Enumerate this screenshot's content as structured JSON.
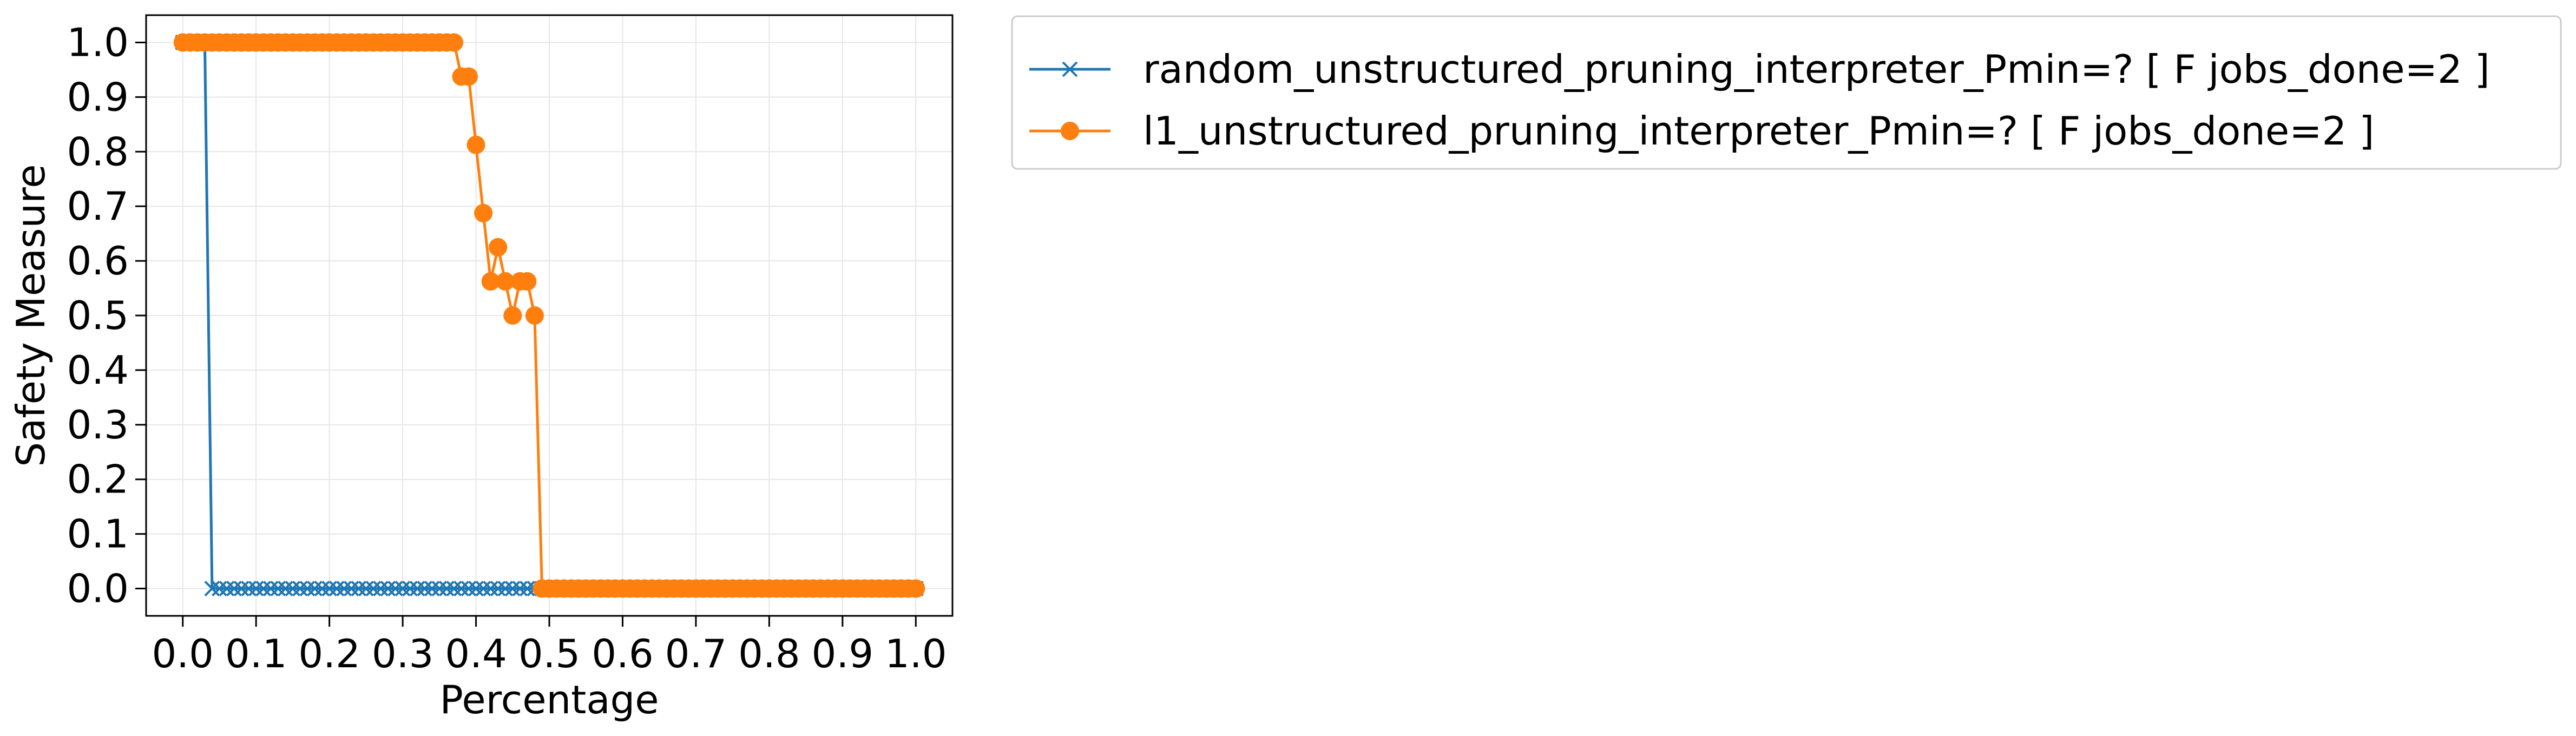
{
  "chart_data": {
    "type": "line",
    "title": "",
    "xlabel": "Percentage",
    "ylabel": "Safety Measure",
    "xlim": [
      -0.05,
      1.05
    ],
    "ylim": [
      -0.05,
      1.05
    ],
    "xticks": [
      0.0,
      0.1,
      0.2,
      0.3,
      0.4,
      0.5,
      0.6,
      0.7,
      0.8,
      0.9,
      1.0
    ],
    "xtick_labels": [
      "0.0",
      "0.1",
      "0.2",
      "0.3",
      "0.4",
      "0.5",
      "0.6",
      "0.7",
      "0.8",
      "0.9",
      "1.0"
    ],
    "yticks": [
      0.0,
      0.1,
      0.2,
      0.3,
      0.4,
      0.5,
      0.6,
      0.7,
      0.8,
      0.9,
      1.0
    ],
    "ytick_labels": [
      "0.0",
      "0.1",
      "0.2",
      "0.3",
      "0.4",
      "0.5",
      "0.6",
      "0.7",
      "0.8",
      "0.9",
      "1.0"
    ],
    "grid": true,
    "legend_position": "outside-top-right",
    "series": [
      {
        "name": "random_unstructured_pruning_interpreter_Pmin=? [ F jobs_done=2 ]",
        "color": "#1f77b4",
        "marker": "x",
        "x": [
          0.0,
          0.01,
          0.02,
          0.03,
          0.04,
          0.05,
          0.06,
          0.07,
          0.08,
          0.09,
          0.1,
          0.11,
          0.12,
          0.13,
          0.14,
          0.15,
          0.16,
          0.17,
          0.18,
          0.19,
          0.2,
          0.21,
          0.22,
          0.23,
          0.24,
          0.25,
          0.26,
          0.27,
          0.28,
          0.29,
          0.3,
          0.31,
          0.32,
          0.33,
          0.34,
          0.35,
          0.36,
          0.37,
          0.38,
          0.39,
          0.4,
          0.41,
          0.42,
          0.43,
          0.44,
          0.45,
          0.46,
          0.47,
          0.48,
          0.49,
          0.5,
          0.51,
          0.52,
          0.53,
          0.54,
          0.55,
          0.56,
          0.57,
          0.58,
          0.59,
          0.6,
          0.61,
          0.62,
          0.63,
          0.64,
          0.65,
          0.66,
          0.67,
          0.68,
          0.69,
          0.7,
          0.71,
          0.72,
          0.73,
          0.74,
          0.75,
          0.76,
          0.77,
          0.78,
          0.79,
          0.8,
          0.81,
          0.82,
          0.83,
          0.84,
          0.85,
          0.86,
          0.87,
          0.88,
          0.89,
          0.9,
          0.91,
          0.92,
          0.93,
          0.94,
          0.95,
          0.96,
          0.97,
          0.98,
          0.99,
          1.0
        ],
        "values": [
          1.0,
          1.0,
          1.0,
          1.0,
          0.0,
          0.0,
          0.0,
          0.0,
          0.0,
          0.0,
          0.0,
          0.0,
          0.0,
          0.0,
          0.0,
          0.0,
          0.0,
          0.0,
          0.0,
          0.0,
          0.0,
          0.0,
          0.0,
          0.0,
          0.0,
          0.0,
          0.0,
          0.0,
          0.0,
          0.0,
          0.0,
          0.0,
          0.0,
          0.0,
          0.0,
          0.0,
          0.0,
          0.0,
          0.0,
          0.0,
          0.0,
          0.0,
          0.0,
          0.0,
          0.0,
          0.0,
          0.0,
          0.0,
          0.0,
          0.0,
          0.0,
          0.0,
          0.0,
          0.0,
          0.0,
          0.0,
          0.0,
          0.0,
          0.0,
          0.0,
          0.0,
          0.0,
          0.0,
          0.0,
          0.0,
          0.0,
          0.0,
          0.0,
          0.0,
          0.0,
          0.0,
          0.0,
          0.0,
          0.0,
          0.0,
          0.0,
          0.0,
          0.0,
          0.0,
          0.0,
          0.0,
          0.0,
          0.0,
          0.0,
          0.0,
          0.0,
          0.0,
          0.0,
          0.0,
          0.0,
          0.0,
          0.0,
          0.0,
          0.0,
          0.0,
          0.0,
          0.0,
          0.0,
          0.0,
          0.0,
          0.0
        ]
      },
      {
        "name": "l1_unstructured_pruning_interpreter_Pmin=? [ F jobs_done=2 ]",
        "color": "#ff7f0e",
        "marker": "o",
        "x": [
          0.0,
          0.01,
          0.02,
          0.03,
          0.04,
          0.05,
          0.06,
          0.07,
          0.08,
          0.09,
          0.1,
          0.11,
          0.12,
          0.13,
          0.14,
          0.15,
          0.16,
          0.17,
          0.18,
          0.19,
          0.2,
          0.21,
          0.22,
          0.23,
          0.24,
          0.25,
          0.26,
          0.27,
          0.28,
          0.29,
          0.3,
          0.31,
          0.32,
          0.33,
          0.34,
          0.35,
          0.36,
          0.37,
          0.38,
          0.39,
          0.4,
          0.41,
          0.42,
          0.43,
          0.44,
          0.45,
          0.46,
          0.47,
          0.48,
          0.49,
          0.5,
          0.51,
          0.52,
          0.53,
          0.54,
          0.55,
          0.56,
          0.57,
          0.58,
          0.59,
          0.6,
          0.61,
          0.62,
          0.63,
          0.64,
          0.65,
          0.66,
          0.67,
          0.68,
          0.69,
          0.7,
          0.71,
          0.72,
          0.73,
          0.74,
          0.75,
          0.76,
          0.77,
          0.78,
          0.79,
          0.8,
          0.81,
          0.82,
          0.83,
          0.84,
          0.85,
          0.86,
          0.87,
          0.88,
          0.89,
          0.9,
          0.91,
          0.92,
          0.93,
          0.94,
          0.95,
          0.96,
          0.97,
          0.98,
          0.99,
          1.0
        ],
        "values": [
          1.0,
          1.0,
          1.0,
          1.0,
          1.0,
          1.0,
          1.0,
          1.0,
          1.0,
          1.0,
          1.0,
          1.0,
          1.0,
          1.0,
          1.0,
          1.0,
          1.0,
          1.0,
          1.0,
          1.0,
          1.0,
          1.0,
          1.0,
          1.0,
          1.0,
          1.0,
          1.0,
          1.0,
          1.0,
          1.0,
          1.0,
          1.0,
          1.0,
          1.0,
          1.0,
          1.0,
          1.0,
          1.0,
          0.9375,
          0.9375,
          0.8125,
          0.6875,
          0.5625,
          0.625,
          0.5625,
          0.5,
          0.5625,
          0.5625,
          0.5,
          0.0,
          0.0,
          0.0,
          0.0,
          0.0,
          0.0,
          0.0,
          0.0,
          0.0,
          0.0,
          0.0,
          0.0,
          0.0,
          0.0,
          0.0,
          0.0,
          0.0,
          0.0,
          0.0,
          0.0,
          0.0,
          0.0,
          0.0,
          0.0,
          0.0,
          0.0,
          0.0,
          0.0,
          0.0,
          0.0,
          0.0,
          0.0,
          0.0,
          0.0,
          0.0,
          0.0,
          0.0,
          0.0,
          0.0,
          0.0,
          0.0,
          0.0,
          0.0,
          0.0,
          0.0,
          0.0,
          0.0,
          0.0,
          0.0,
          0.0,
          0.0,
          0.0
        ]
      }
    ]
  }
}
